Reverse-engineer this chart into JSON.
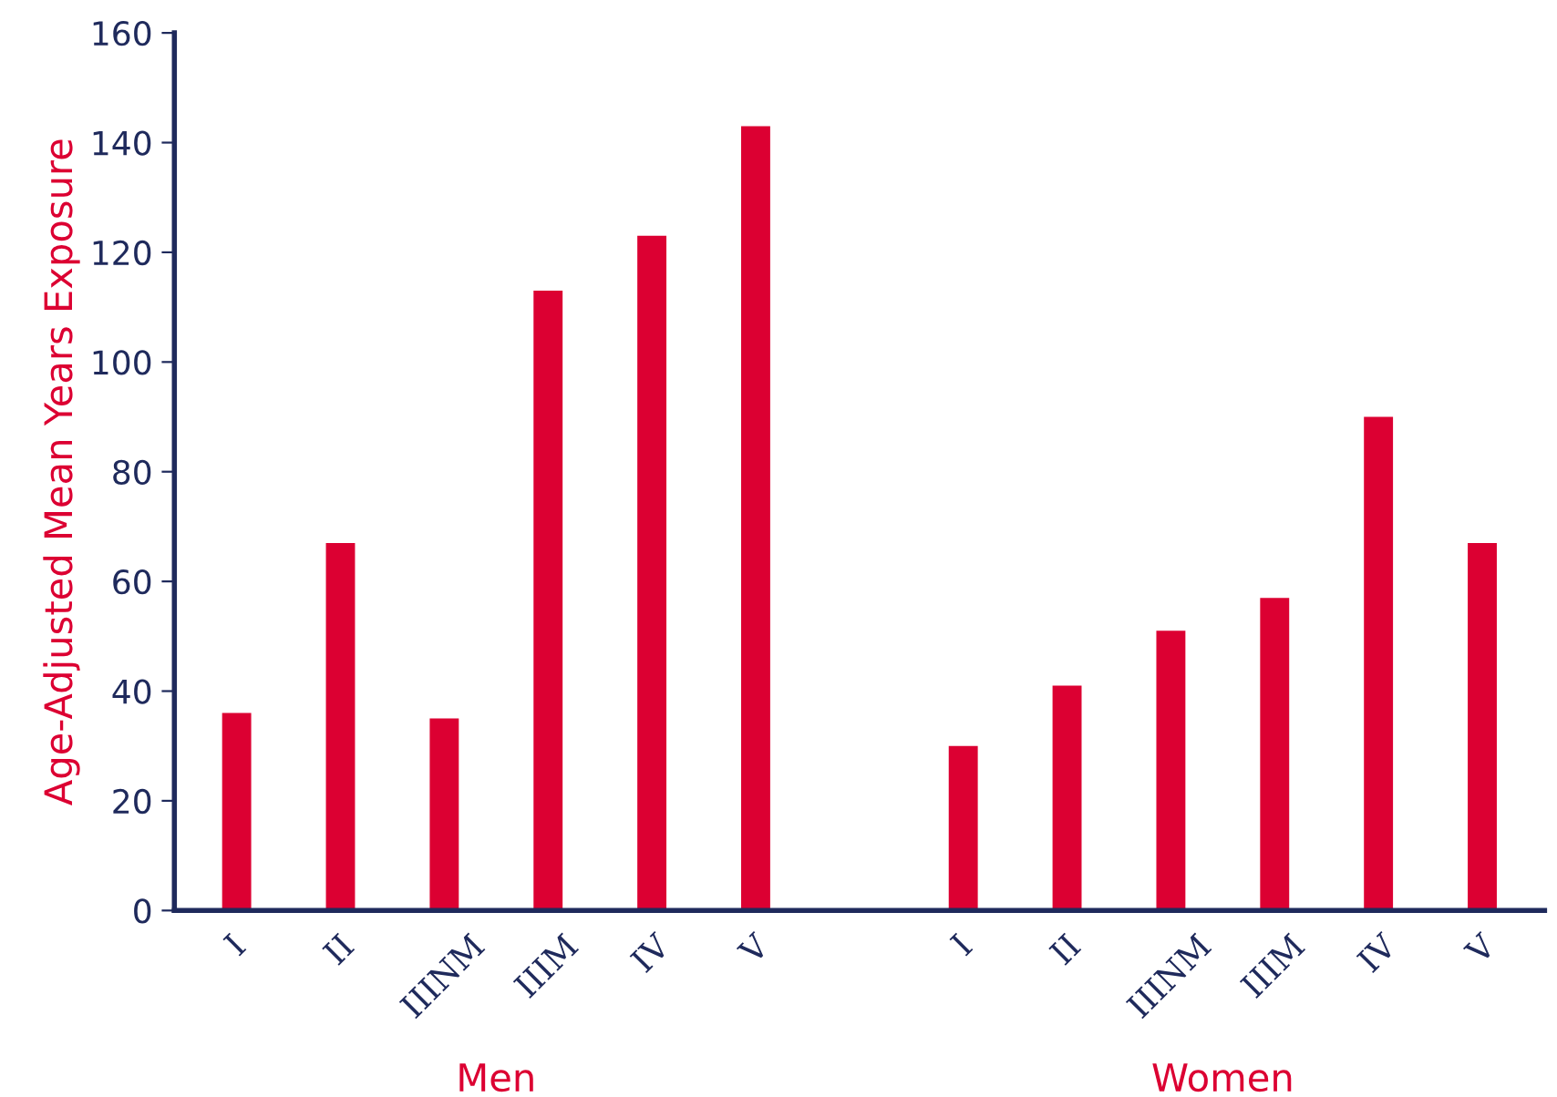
{
  "chart_data": {
    "type": "bar",
    "ylabel": "Age-Adjusted Mean Years Exposure",
    "categories": [
      "I",
      "II",
      "IIINM",
      "IIIM",
      "IV",
      "V",
      null,
      "I",
      "II",
      "IIINM",
      "IIIM",
      "IV",
      "V"
    ],
    "values": [
      36,
      67,
      35,
      113,
      123,
      143,
      null,
      30,
      41,
      51,
      57,
      90,
      67
    ],
    "color": "#dc0032",
    "annotations": [
      "Men",
      "Women"
    ],
    "ylim": [
      0,
      160
    ],
    "yticks": [
      0,
      20,
      40,
      60,
      80,
      100,
      120,
      140,
      160
    ],
    "grid": false
  }
}
